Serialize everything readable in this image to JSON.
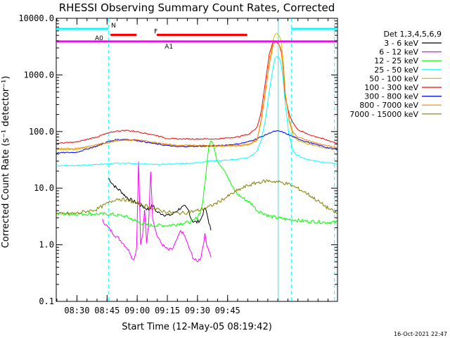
{
  "chart_data": {
    "type": "line",
    "title": "RHESSI Observing Summary Count Rates, Corrected",
    "xlabel": "Start Time (12-May-05 08:19:42)",
    "ylabel": "Corrected Count Rate (s⁻¹ detector⁻¹)",
    "timestamp": "16-Oct-2021 22:47",
    "y_scale": "log",
    "ylim": [
      0.1,
      10000
    ],
    "xlim_min": [
      0,
      140
    ],
    "y_ticks": [
      {
        "value": 0.1,
        "label": "0.1"
      },
      {
        "value": 1,
        "label": "1.0"
      },
      {
        "value": 10,
        "label": "10.0"
      },
      {
        "value": 100,
        "label": "100.0"
      },
      {
        "value": 1000,
        "label": "1000.0"
      },
      {
        "value": 10000,
        "label": "10000.0"
      }
    ],
    "x_ticks": [
      {
        "value": 10.3,
        "label": "08:30"
      },
      {
        "value": 25.3,
        "label": "08:45"
      },
      {
        "value": 40.3,
        "label": "09:00"
      },
      {
        "value": 55.3,
        "label": "09:15"
      },
      {
        "value": 70.3,
        "label": "09:30"
      },
      {
        "value": 85.3,
        "label": "09:45"
      }
    ],
    "legend_title": "Det 1,3,4,5,6,9",
    "legend_position": "outside-right",
    "series": [
      {
        "name": "3 - 6 keV",
        "color": "#000000",
        "x": [
          26,
          28,
          30,
          32,
          34,
          36,
          38,
          40,
          42,
          44,
          46,
          48,
          50,
          52,
          54,
          56,
          58,
          60,
          62,
          64,
          66,
          67,
          68,
          70,
          72,
          74,
          75,
          76,
          77
        ],
        "y": [
          15,
          12,
          10,
          9,
          7.5,
          6.5,
          6,
          5.5,
          5,
          4.5,
          4.2,
          5,
          3.8,
          3.6,
          3.4,
          3.3,
          3.5,
          4,
          4.5,
          4.7,
          4,
          3,
          2.6,
          2.5,
          2.8,
          4.5,
          3.5,
          2.5,
          1.8
        ]
      },
      {
        "name": "6 - 12 keV",
        "color": "#ff00ff",
        "x": [
          23,
          25,
          27,
          29,
          31,
          33,
          35,
          37,
          38,
          39,
          40,
          41,
          42,
          43,
          44,
          45,
          46,
          47,
          48,
          50,
          52,
          54,
          56,
          58,
          60,
          62,
          64,
          66,
          68,
          70,
          72,
          74,
          75,
          76,
          77
        ],
        "y": [
          2.7,
          2.2,
          1.8,
          1.5,
          1.3,
          1.1,
          0.9,
          0.7,
          0.55,
          0.6,
          0.9,
          30,
          1,
          1.5,
          4,
          1.1,
          2.5,
          20,
          3,
          1.5,
          1.1,
          0.9,
          0.8,
          0.85,
          1.2,
          1.8,
          1.4,
          0.9,
          0.6,
          0.5,
          0.6,
          1.5,
          1.0,
          0.8,
          0.6
        ]
      },
      {
        "name": "12 - 25 keV",
        "color": "#00ff00",
        "x": [
          0,
          10,
          20,
          26,
          34,
          38,
          42,
          46,
          52,
          56,
          62,
          66,
          68,
          70,
          72,
          73,
          74,
          75,
          76,
          77,
          78,
          79,
          80,
          84,
          86,
          88,
          90,
          92,
          95,
          98,
          100,
          102,
          104,
          106,
          110,
          115,
          118,
          120,
          125,
          135,
          140
        ],
        "y": [
          3.5,
          3.5,
          3.5,
          3.5,
          3.2,
          2.8,
          2.4,
          2.2,
          2.2,
          2.2,
          2.4,
          2.5,
          2.6,
          3,
          4,
          6,
          12,
          28,
          55,
          70,
          62,
          45,
          30,
          20,
          14,
          10,
          8,
          7,
          6,
          5,
          4,
          3.8,
          3.5,
          3.2,
          3,
          2.8,
          2.8,
          2.7,
          2.6,
          2.5,
          2.5
        ]
      },
      {
        "name": "25 - 50 keV",
        "color": "#00ffff",
        "x": [
          0,
          10,
          20,
          25,
          30,
          40,
          50,
          60,
          70,
          75,
          90,
          96,
          100,
          102,
          104,
          106,
          108,
          109,
          110,
          111,
          112,
          113,
          114,
          116,
          118,
          120,
          125,
          130,
          135,
          140
        ],
        "y": [
          25,
          25,
          26,
          27,
          28,
          27,
          26,
          27,
          28,
          30,
          32,
          35,
          45,
          70,
          150,
          500,
          1400,
          2000,
          2100,
          2000,
          1500,
          800,
          300,
          80,
          45,
          38,
          32,
          30,
          28,
          27
        ]
      },
      {
        "name": "50 - 100 keV",
        "color": "#ddbb00",
        "x": [
          0,
          10,
          20,
          25,
          30,
          40,
          50,
          60,
          70,
          80,
          90,
          96,
          100,
          102,
          104,
          106,
          108,
          109,
          110,
          111,
          112,
          113,
          114,
          116,
          118,
          120,
          125,
          130,
          135,
          140
        ],
        "y": [
          48,
          48,
          55,
          62,
          68,
          70,
          62,
          55,
          55,
          55,
          55,
          58,
          70,
          150,
          450,
          1600,
          4200,
          5200,
          5400,
          5000,
          3800,
          1800,
          500,
          150,
          85,
          70,
          60,
          55,
          50,
          48
        ]
      },
      {
        "name": "100 - 300 keV",
        "color": "#ff0000",
        "x": [
          0,
          10,
          20,
          25,
          30,
          35,
          40,
          50,
          55,
          60,
          70,
          80,
          90,
          96,
          100,
          102,
          104,
          106,
          108,
          109,
          110,
          111,
          112,
          113,
          114,
          116,
          118,
          120,
          125,
          130,
          135,
          140
        ],
        "y": [
          62,
          65,
          80,
          92,
          102,
          105,
          100,
          85,
          76,
          74,
          74,
          74,
          80,
          90,
          120,
          220,
          700,
          2300,
          3900,
          4000,
          3800,
          3400,
          2600,
          1200,
          400,
          200,
          140,
          110,
          90,
          80,
          70,
          62
        ]
      },
      {
        "name": "300 - 800 keV",
        "color": "#0000ff",
        "x": [
          0,
          10,
          20,
          25,
          30,
          35,
          40,
          50,
          60,
          70,
          80,
          90,
          95,
          100,
          105,
          108,
          110,
          112,
          115,
          120,
          125,
          130,
          135,
          140
        ],
        "y": [
          42,
          43,
          55,
          65,
          72,
          73,
          70,
          60,
          54,
          55,
          56,
          60,
          65,
          75,
          90,
          100,
          102,
          100,
          90,
          75,
          65,
          58,
          52,
          48
        ]
      },
      {
        "name": "800 - 7000 keV",
        "color": "#ff8000",
        "x": [
          0,
          10,
          20,
          25,
          30,
          40,
          50,
          60,
          70,
          80,
          90,
          96,
          100,
          102,
          104,
          106,
          108,
          109,
          110,
          111,
          112,
          113,
          114,
          116,
          118,
          120,
          125,
          130,
          135,
          140
        ],
        "y": [
          50,
          50,
          58,
          64,
          70,
          72,
          64,
          57,
          57,
          57,
          57,
          60,
          72,
          160,
          480,
          1500,
          3400,
          3900,
          3700,
          3300,
          2500,
          1300,
          450,
          160,
          95,
          80,
          70,
          62,
          56,
          52
        ]
      },
      {
        "name": "7000 - 15000 keV",
        "color": "#808000",
        "x": [
          0,
          10,
          20,
          26,
          30,
          35,
          40,
          45,
          50,
          55,
          60,
          65,
          70,
          75,
          80,
          85,
          90,
          95,
          100,
          105,
          110,
          115,
          120,
          125,
          130,
          135,
          140
        ],
        "y": [
          3.5,
          3.6,
          4.2,
          5.5,
          6.5,
          6.2,
          5.5,
          4.8,
          4.2,
          3.8,
          3.6,
          3.7,
          4,
          4.5,
          5.5,
          7,
          9,
          11,
          12.5,
          13.5,
          13,
          12,
          10,
          8,
          6,
          4.5,
          3.5
        ]
      }
    ],
    "annotations": {
      "dashed_lines_x": [
        26.0,
        117.0,
        138.5
      ],
      "solid_line_x": 110.5,
      "bars": [
        {
          "label": "N",
          "color": "#00ffff",
          "y": 6500,
          "segments": [
            [
              0,
              26
            ],
            [
              117,
              140
            ]
          ]
        },
        {
          "label": "F",
          "color": "#ff0000",
          "y": 5100,
          "segments": [
            [
              27,
              40
            ],
            [
              50,
              95
            ]
          ]
        },
        {
          "label": "A0",
          "color": "#ff00ff",
          "y": 3900,
          "segments": [
            [
              0,
              26
            ]
          ]
        },
        {
          "label": "A1",
          "color": "#ff00ff",
          "y": 3900,
          "segments": [
            [
              26,
              140
            ]
          ]
        }
      ]
    }
  }
}
